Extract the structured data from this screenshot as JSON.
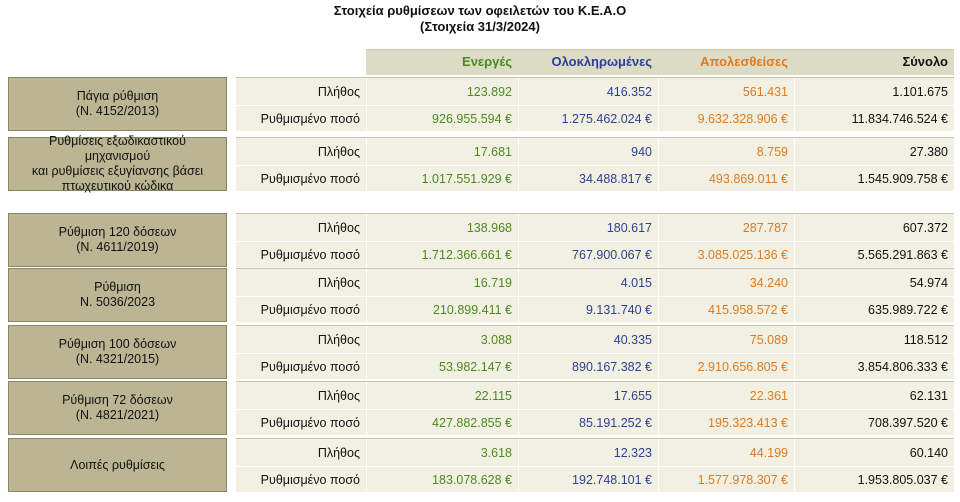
{
  "title": {
    "line1": "Στοιχεία ρυθμίσεων των οφειλετών του Κ.Ε.Α.Ο",
    "line2": "(Στοιχεία 31/3/2024)"
  },
  "columns": {
    "active": "Ενεργές",
    "completed": "Ολοκληρωμένες",
    "lost": "Απολεσθείσες",
    "total": "Σύνολο"
  },
  "colors": {
    "active": "#4b8a1f",
    "completed": "#2d3f95",
    "lost": "#e07a1c",
    "label_bg": "#bcb593",
    "row_bg": "#f2f0e3"
  },
  "blocks": [
    {
      "label": "Πάγια ρύθμιση\n(Ν. 4152/2013)",
      "rows": [
        {
          "label": "Πλήθος",
          "active": "123.892",
          "completed": "416.352",
          "lost": "561.431",
          "total": "1.101.675"
        },
        {
          "label": "Ρυθμισμένο ποσό",
          "active": "926.955.594 €",
          "completed": "1.275.462.024 €",
          "lost": "9.632.328.906 €",
          "total": "11.834.746.524 €"
        }
      ]
    },
    {
      "label": "Ρυθμίσεις εξωδικαστικού\nμηχανισμού\nκαι ρυθμίσεις εξυγίανσης βάσει\nπτωχευτικού κώδικα",
      "rows": [
        {
          "label": "Πλήθος",
          "active": "17.681",
          "completed": "940",
          "lost": "8.759",
          "total": "27.380"
        },
        {
          "label": "Ρυθμισμένο ποσό",
          "active": "1.017.551.929 €",
          "completed": "34.488.817 €",
          "lost": "493.869.011 €",
          "total": "1.545.909.758 €"
        }
      ]
    },
    {
      "label": "Ρύθμιση 120 δόσεων\n(Ν. 4611/2019)",
      "rows": [
        {
          "label": "Πλήθος",
          "active": "138.968",
          "completed": "180.617",
          "lost": "287.787",
          "total": "607.372"
        },
        {
          "label": "Ρυθμισμένο ποσό",
          "active": "1.712.366.661 €",
          "completed": "767.900.067 €",
          "lost": "3.085.025.136 €",
          "total": "5.565.291.863 €"
        }
      ]
    },
    {
      "label": "Ρύθμιση\nΝ. 5036/2023",
      "rows": [
        {
          "label": "Πλήθος",
          "active": "16.719",
          "completed": "4.015",
          "lost": "34.240",
          "total": "54.974"
        },
        {
          "label": "Ρυθμισμένο ποσό",
          "active": "210.899.411 €",
          "completed": "9.131.740 €",
          "lost": "415.958.572 €",
          "total": "635.989.722 €"
        }
      ]
    },
    {
      "label": "Ρύθμιση 100 δόσεων\n(Ν. 4321/2015)",
      "rows": [
        {
          "label": "Πλήθος",
          "active": "3.088",
          "completed": "40.335",
          "lost": "75.089",
          "total": "118.512"
        },
        {
          "label": "Ρυθμισμένο ποσό",
          "active": "53.982.147 €",
          "completed": "890.167.382 €",
          "lost": "2.910.656.805 €",
          "total": "3.854.806.333 €"
        }
      ]
    },
    {
      "label": "Ρύθμιση 72 δόσεων\n(Ν. 4821/2021)",
      "rows": [
        {
          "label": "Πλήθος",
          "active": "22.115",
          "completed": "17.655",
          "lost": "22.361",
          "total": "62.131"
        },
        {
          "label": "Ρυθμισμένο ποσό",
          "active": "427.882.855 €",
          "completed": "85.191.252 €",
          "lost": "195.323.413 €",
          "total": "708.397.520 €"
        }
      ]
    },
    {
      "label": "Λοιπές ρυθμίσεις",
      "rows": [
        {
          "label": "Πλήθος",
          "active": "3.618",
          "completed": "12.323",
          "lost": "44.199",
          "total": "60.140"
        },
        {
          "label": "Ρυθμισμένο ποσό",
          "active": "183.078.628 €",
          "completed": "192.748.101 €",
          "lost": "1.577.978.307 €",
          "total": "1.953.805.037 €"
        }
      ]
    }
  ]
}
